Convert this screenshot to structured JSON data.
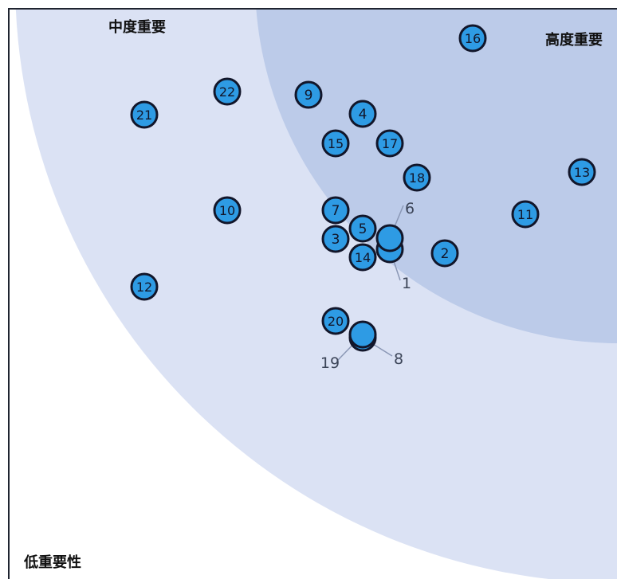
{
  "chart_data": {
    "type": "scatter",
    "zone_labels": {
      "low": "低重要性",
      "medium": "中度重要",
      "high": "高度重要"
    },
    "xlim": [
      0,
      774
    ],
    "ylim": [
      0,
      727
    ],
    "points": [
      {
        "id": "1",
        "x": 489,
        "y": 313,
        "label": "1",
        "label_outside": true,
        "label_x": 510,
        "label_y": 362
      },
      {
        "id": "2",
        "x": 558,
        "y": 318,
        "label": "2"
      },
      {
        "id": "3",
        "x": 421,
        "y": 300,
        "label": "3"
      },
      {
        "id": "4",
        "x": 455,
        "y": 143,
        "label": "4"
      },
      {
        "id": "5",
        "x": 455,
        "y": 287,
        "label": "5"
      },
      {
        "id": "6",
        "x": 489,
        "y": 299,
        "label": "6",
        "label_outside": true,
        "label_x": 514,
        "label_y": 268
      },
      {
        "id": "7",
        "x": 421,
        "y": 264,
        "label": "7"
      },
      {
        "id": "8",
        "x": 455,
        "y": 424,
        "label": "8",
        "label_outside": true,
        "label_x": 500,
        "label_y": 457
      },
      {
        "id": "9",
        "x": 387,
        "y": 119,
        "label": "9"
      },
      {
        "id": "10",
        "x": 285,
        "y": 264,
        "label": "10"
      },
      {
        "id": "11",
        "x": 659,
        "y": 269,
        "label": "11"
      },
      {
        "id": "12",
        "x": 181,
        "y": 360,
        "label": "12"
      },
      {
        "id": "13",
        "x": 730,
        "y": 216,
        "label": "13"
      },
      {
        "id": "14",
        "x": 455,
        "y": 323,
        "label": "14"
      },
      {
        "id": "15",
        "x": 421,
        "y": 180,
        "label": "15"
      },
      {
        "id": "16",
        "x": 593,
        "y": 48,
        "label": "16"
      },
      {
        "id": "17",
        "x": 489,
        "y": 180,
        "label": "17"
      },
      {
        "id": "18",
        "x": 523,
        "y": 223,
        "label": "18"
      },
      {
        "id": "19",
        "x": 455,
        "y": 420,
        "label": "19",
        "label_outside": true,
        "label_x": 414,
        "label_y": 462
      },
      {
        "id": "20",
        "x": 421,
        "y": 403,
        "label": "20"
      },
      {
        "id": "21",
        "x": 181,
        "y": 144,
        "label": "21"
      },
      {
        "id": "22",
        "x": 285,
        "y": 115,
        "label": "22"
      }
    ]
  },
  "colors": {
    "outer_zone": "#dbe2f4",
    "inner_zone": "#bccbe9",
    "point_fill": "#2e9be4",
    "point_stroke": "#12162a",
    "leader_line": "#8a97b5",
    "outer_label_color": "#3c4558",
    "frame": "#1f2430"
  }
}
